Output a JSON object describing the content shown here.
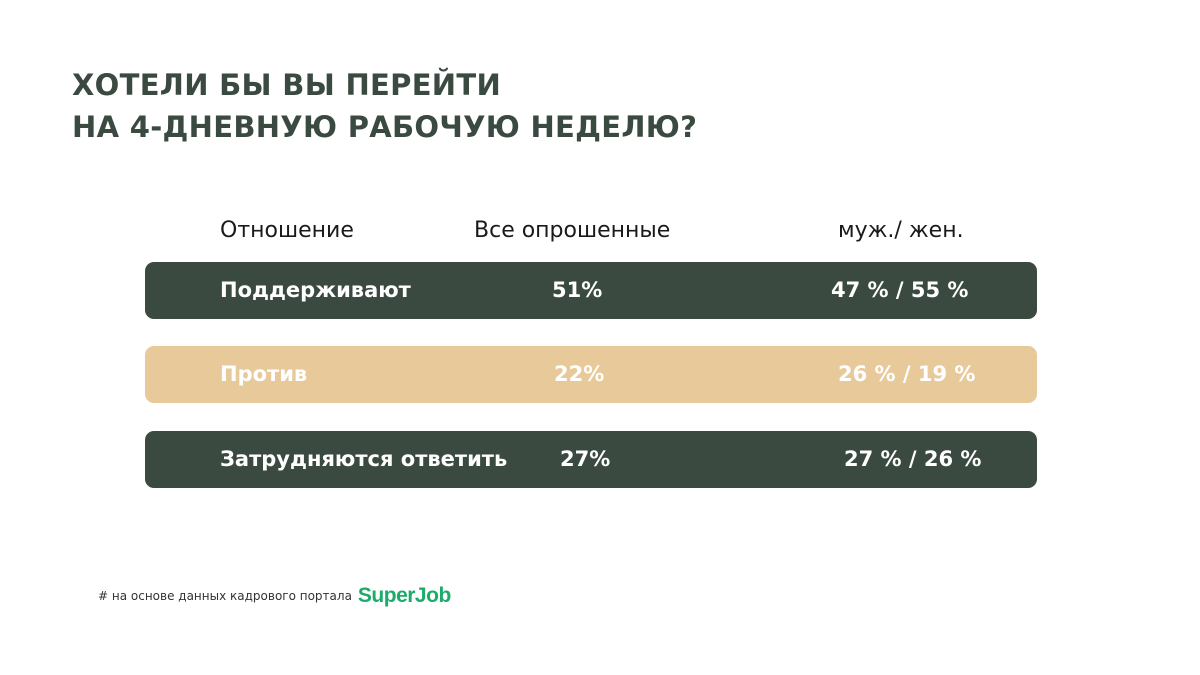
{
  "title_lines": [
    "ХОТЕЛИ БЫ ВЫ ПЕРЕЙТИ",
    "НА 4-ДНЕВНУЮ РАБОЧУЮ НЕДЕЛЮ?"
  ],
  "headers": [
    "Отношение",
    "Все опрошенные",
    "муж./ жен."
  ],
  "rows": [
    {
      "label": "Поддерживают",
      "all": "51%",
      "men_women": "47 % / 55 %",
      "bg": "#3b4a40",
      "fg": "#ffffff"
    },
    {
      "label": "Против",
      "all": "22%",
      "men_women": "26 % / 19 %",
      "bg": "#e8c99a",
      "fg": "#ffffff"
    },
    {
      "label": "Затрудняются ответить",
      "all": "27%",
      "men_women": "27 % / 26 %",
      "bg": "#3b4a40",
      "fg": "#ffffff"
    }
  ],
  "chart_data": {
    "type": "table",
    "columns": [
      "Отношение",
      "Все опрошенные",
      "муж./ жен."
    ],
    "rows": [
      [
        "Поддерживают",
        51,
        [
          47,
          55
        ]
      ],
      [
        "Против",
        22,
        [
          26,
          19
        ]
      ],
      [
        "Затрудняются ответить",
        27,
        [
          27,
          26
        ]
      ]
    ],
    "units": "%"
  },
  "footnote": {
    "text": "# на основе данных кадрового портала",
    "logo": "SuperJob",
    "logo_color": "#1cac6a"
  }
}
